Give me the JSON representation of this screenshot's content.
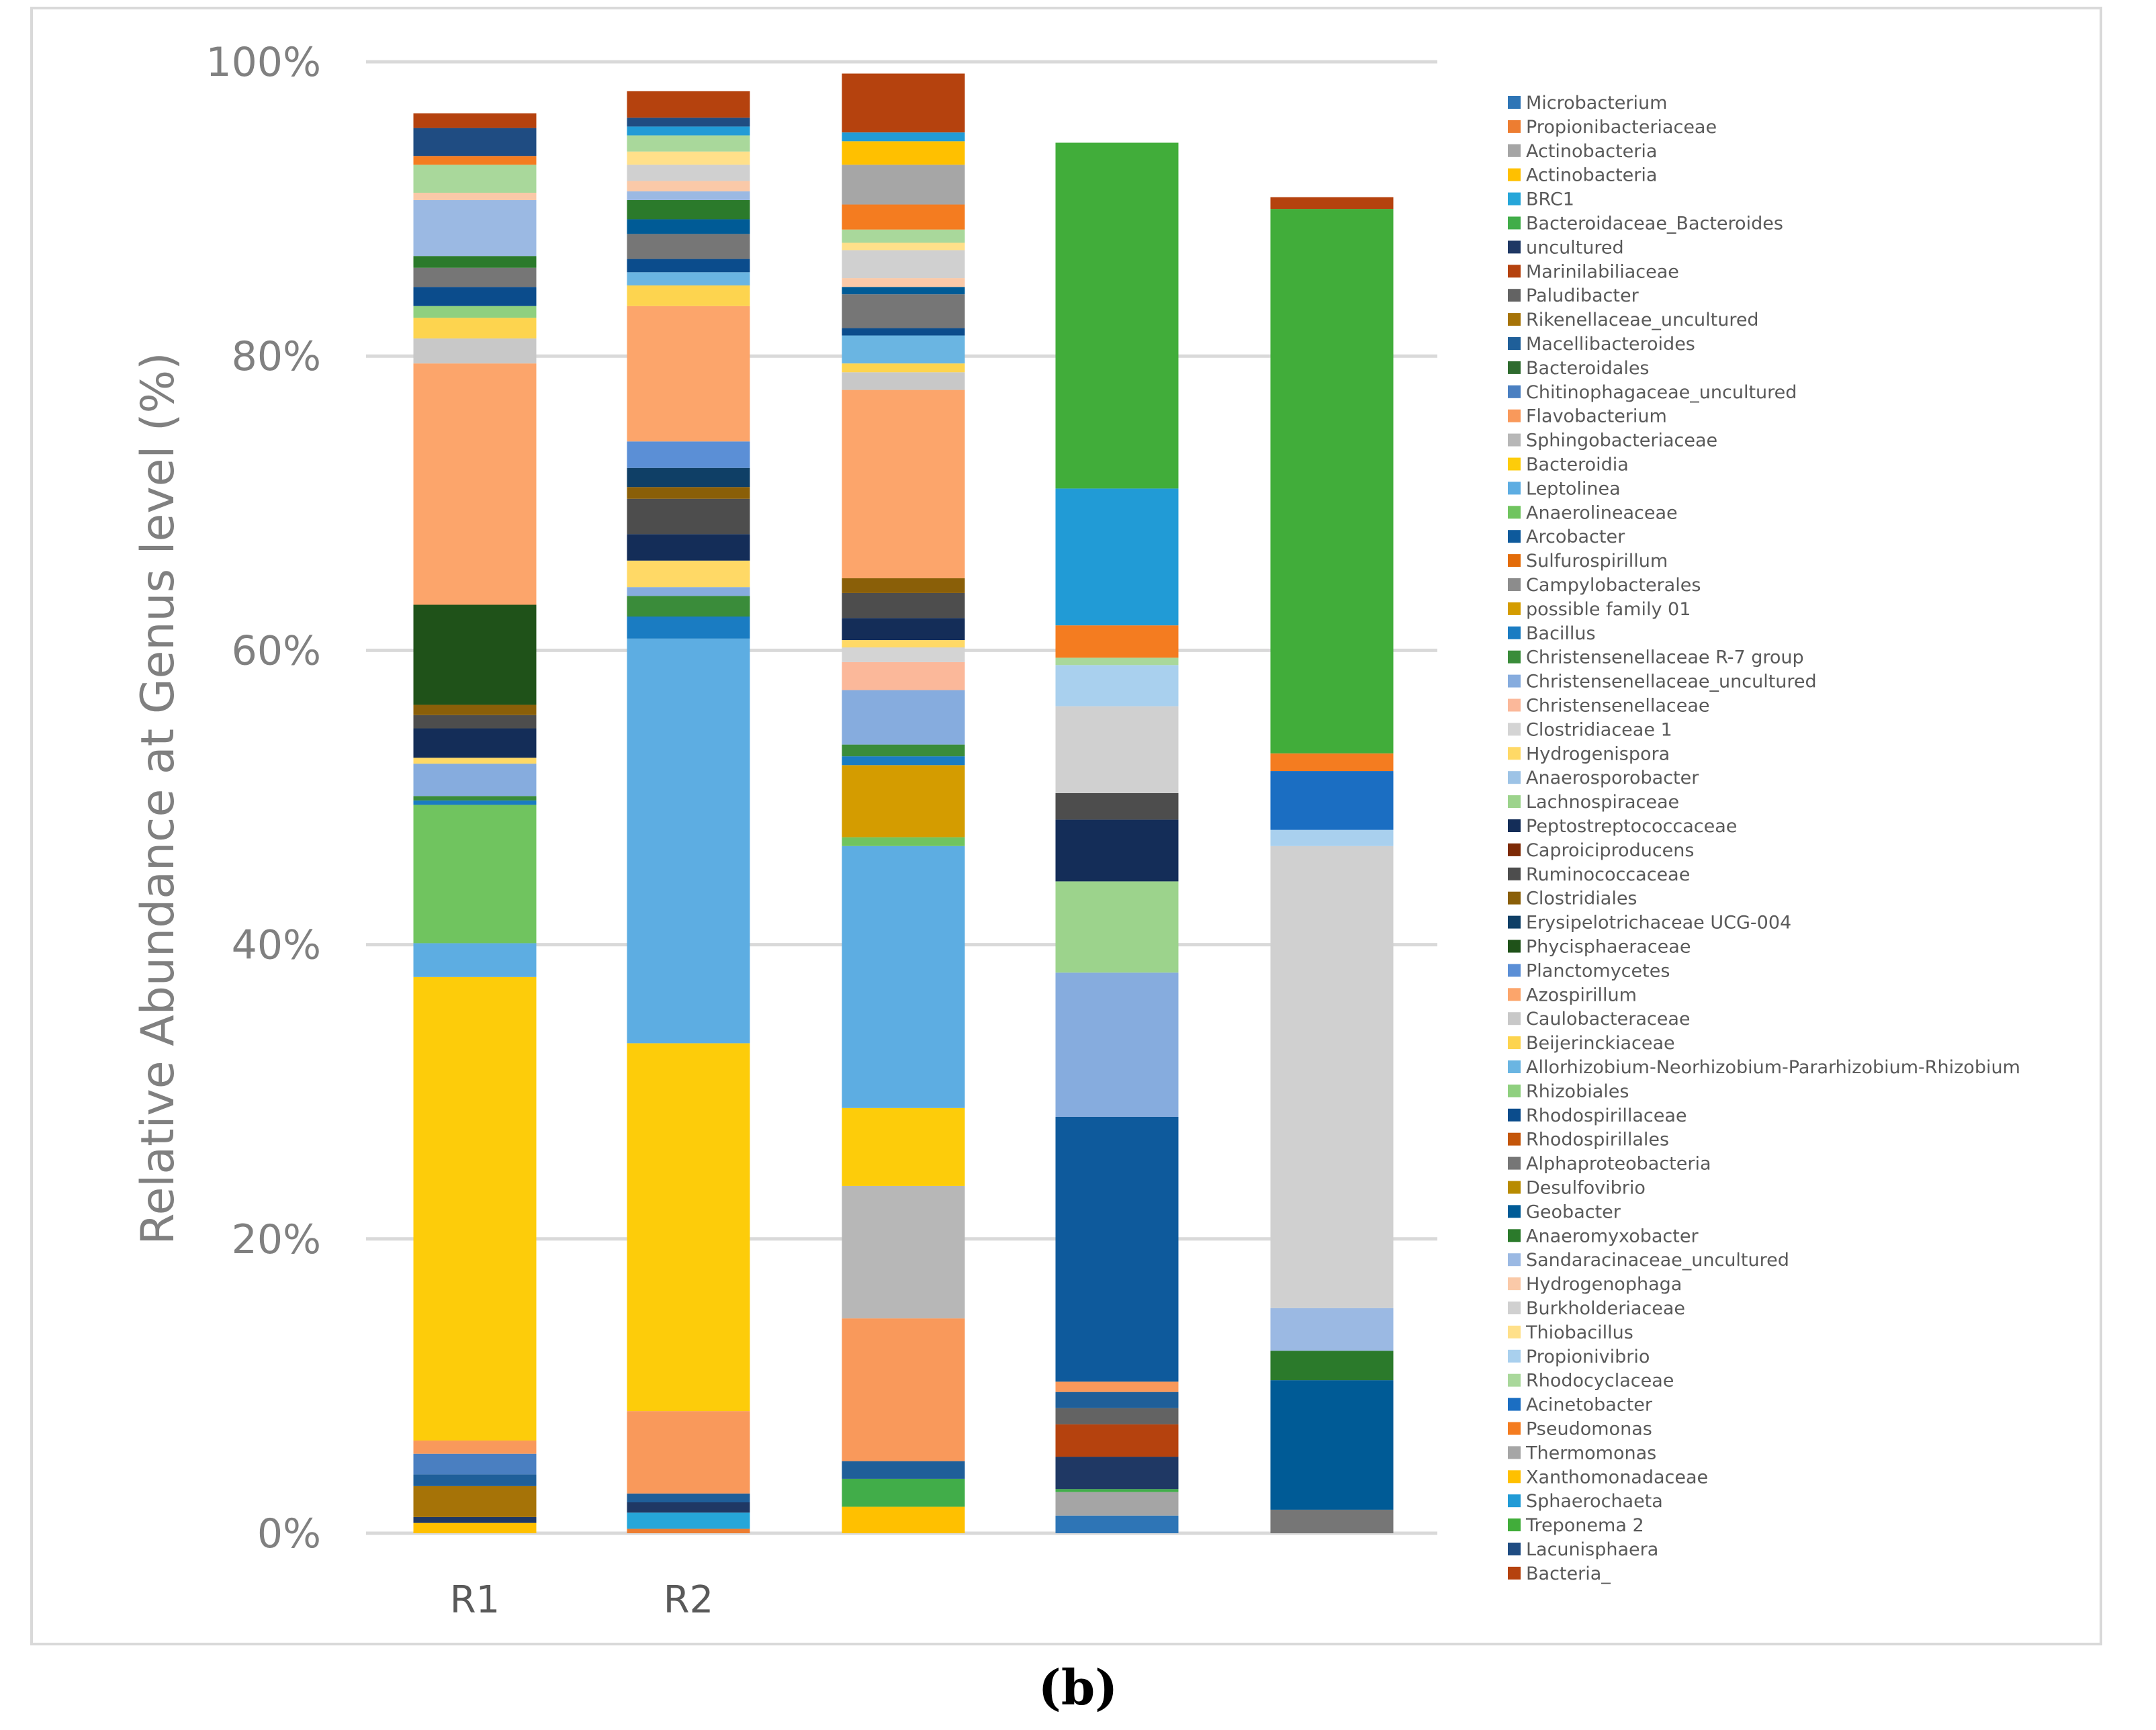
{
  "caption": "(b)",
  "chart_data": {
    "type": "stacked-bar",
    "ylabel": "Relative Abundance at Genus level (%)",
    "ylim": [
      0,
      100
    ],
    "yticks": [
      "0%",
      "20%",
      "40%",
      "60%",
      "80%",
      "100%"
    ],
    "grid": true,
    "legend_position": "right",
    "categories": [
      "R1",
      "R2",
      "",
      "",
      ""
    ],
    "series": [
      {
        "name": "Microbacterium",
        "color": "#2e75b6",
        "values": [
          0,
          0,
          0,
          1.2,
          0
        ]
      },
      {
        "name": "Propionibacteriaceae",
        "color": "#ed7d31",
        "values": [
          0,
          0.3,
          0,
          0,
          0
        ]
      },
      {
        "name": "Actinobacteria",
        "color": "#a5a5a5",
        "values": [
          0,
          0,
          0,
          1.6,
          0
        ]
      },
      {
        "name": "Actinobacteria",
        "color": "#ffc000",
        "values": [
          0.7,
          0,
          1.8,
          0,
          0
        ]
      },
      {
        "name": "BRC1",
        "color": "#26a6d9",
        "values": [
          0,
          1.1,
          0,
          0,
          0
        ]
      },
      {
        "name": "Bacteroidaceae_Bacteroides",
        "color": "#41ad49",
        "values": [
          0,
          0,
          1.9,
          0.2,
          0
        ]
      },
      {
        "name": "uncultured",
        "color": "#1f3864",
        "values": [
          0.4,
          0.7,
          0,
          2.2,
          0
        ]
      },
      {
        "name": "Marinilabiliaceae",
        "color": "#b5420e",
        "values": [
          0,
          0,
          0,
          2.2,
          0
        ]
      },
      {
        "name": "Paludibacter",
        "color": "#636363",
        "values": [
          0,
          0,
          0,
          1.1,
          0
        ]
      },
      {
        "name": "Rikenellaceae_uncultured",
        "color": "#a67307",
        "values": [
          2.1,
          0,
          0,
          0,
          0
        ]
      },
      {
        "name": "Macellibacteroides",
        "color": "#1f5f99",
        "values": [
          0.8,
          0.6,
          1.2,
          1.1,
          0
        ]
      },
      {
        "name": "Bacteroidales",
        "color": "#2e6b2e",
        "values": [
          0,
          0,
          0,
          0,
          0
        ]
      },
      {
        "name": "Chitinophagaceae_uncultured",
        "color": "#4a7fc1",
        "values": [
          1.4,
          0,
          0,
          0,
          0
        ]
      },
      {
        "name": "Flavobacterium",
        "color": "#f9995b",
        "values": [
          0.9,
          5.6,
          9.7,
          0.7,
          0
        ]
      },
      {
        "name": "Sphingobacteriaceae",
        "color": "#b7b7b7",
        "values": [
          0,
          0,
          9.0,
          0,
          0
        ]
      },
      {
        "name": "Bacteroidia",
        "color": "#fdcc0a",
        "values": [
          31.5,
          25.0,
          5.3,
          0,
          0
        ]
      },
      {
        "name": "Leptolinea",
        "color": "#5dade2",
        "values": [
          2.3,
          27.5,
          17.8,
          0,
          0
        ]
      },
      {
        "name": "Anaerolineaceae",
        "color": "#70c45f",
        "values": [
          9.4,
          0,
          0.6,
          0,
          0
        ]
      },
      {
        "name": "Arcobacter",
        "color": "#0e5a9c",
        "values": [
          0,
          0,
          0,
          18.0,
          0
        ]
      },
      {
        "name": "Sulfurospirillum",
        "color": "#e36c09",
        "values": [
          0,
          0,
          0,
          0,
          0
        ]
      },
      {
        "name": "Campylobacterales",
        "color": "#8c8c8c",
        "values": [
          0,
          0,
          0,
          0,
          0
        ]
      },
      {
        "name": "possible family 01",
        "color": "#d49c00",
        "values": [
          0,
          0,
          4.9,
          0,
          0
        ]
      },
      {
        "name": "Bacillus",
        "color": "#1a7cc2",
        "values": [
          0.3,
          1.5,
          0.6,
          0,
          0
        ]
      },
      {
        "name": "Christensenellaceae R-7 group",
        "color": "#3a8c3a",
        "values": [
          0.3,
          1.4,
          0.8,
          0,
          0
        ]
      },
      {
        "name": "Christensenellaceae_uncultured",
        "color": "#86acde",
        "values": [
          2.2,
          0.6,
          3.7,
          9.8,
          0
        ]
      },
      {
        "name": "Christensenellaceae",
        "color": "#fbb89a",
        "values": [
          0,
          0,
          1.9,
          0,
          0
        ]
      },
      {
        "name": "Clostridiaceae 1",
        "color": "#d4d4d4",
        "values": [
          0,
          0,
          1.0,
          0,
          0
        ]
      },
      {
        "name": "Hydrogenispora",
        "color": "#ffd966",
        "values": [
          0.4,
          1.8,
          0.5,
          0,
          0
        ]
      },
      {
        "name": "Anaerosporobacter",
        "color": "#9dc3e6",
        "values": [
          0,
          0,
          0,
          0,
          0
        ]
      },
      {
        "name": "Lachnospiraceae",
        "color": "#9cd38c",
        "values": [
          0,
          0,
          0,
          6.2,
          0
        ]
      },
      {
        "name": "Peptostreptococcaceae",
        "color": "#142d58",
        "values": [
          2.0,
          1.8,
          1.5,
          4.2,
          0
        ]
      },
      {
        "name": "Caproiciproducens",
        "color": "#7d2a06",
        "values": [
          0,
          0,
          0,
          0,
          0
        ]
      },
      {
        "name": "Ruminococcaceae",
        "color": "#4d4d4d",
        "values": [
          0.9,
          2.4,
          1.7,
          1.8,
          0
        ]
      },
      {
        "name": "Clostridiales",
        "color": "#8a5f08",
        "values": [
          0.7,
          0.8,
          1.0,
          0,
          0
        ]
      },
      {
        "name": "Erysipelotrichaceae UCG-004",
        "color": "#0f3f66",
        "values": [
          0,
          1.3,
          0,
          0,
          0
        ]
      },
      {
        "name": "Phycisphaeraceae",
        "color": "#1f5219",
        "values": [
          6.8,
          0,
          0,
          0,
          0
        ]
      },
      {
        "name": "Planctomycetes",
        "color": "#5b8fd6",
        "values": [
          0,
          1.8,
          0,
          0,
          0
        ]
      },
      {
        "name": "Azospirillum",
        "color": "#fca56b",
        "values": [
          16.4,
          9.2,
          12.8,
          0,
          0
        ]
      },
      {
        "name": "Caulobacteraceae",
        "color": "#c8c8c8",
        "values": [
          1.7,
          0,
          1.2,
          0,
          0
        ]
      },
      {
        "name": "Beijerinckiaceae",
        "color": "#fdd44f",
        "values": [
          1.4,
          1.4,
          0.6,
          0,
          0
        ]
      },
      {
        "name": "Allorhizobium-Neorhizobium-Pararhizobium-Rhizobium",
        "color": "#6ab5e2",
        "values": [
          0,
          0.9,
          1.9,
          0,
          0
        ]
      },
      {
        "name": "Rhizobiales",
        "color": "#8fd07f",
        "values": [
          0.8,
          0,
          0,
          0,
          0
        ]
      },
      {
        "name": "Rhodospirillaceae",
        "color": "#0b4c8c",
        "values": [
          1.3,
          0.9,
          0.5,
          0,
          0
        ]
      },
      {
        "name": "Rhodospirillales",
        "color": "#c4560a",
        "values": [
          0,
          0,
          0,
          0,
          0
        ]
      },
      {
        "name": "Alphaproteobacteria",
        "color": "#767676",
        "values": [
          1.3,
          1.7,
          2.3,
          0,
          1.6
        ]
      },
      {
        "name": "Desulfovibrio",
        "color": "#b88b00",
        "values": [
          0,
          0,
          0,
          0,
          0
        ]
      },
      {
        "name": "Geobacter",
        "color": "#005b96",
        "values": [
          0,
          1.0,
          0.5,
          0,
          8.8
        ]
      },
      {
        "name": "Anaeromyxobacter",
        "color": "#2b7a2b",
        "values": [
          0.8,
          1.3,
          0,
          0,
          2.0
        ]
      },
      {
        "name": "Sandaracinaceae_uncultured",
        "color": "#9bb9e3",
        "values": [
          3.8,
          0.6,
          0,
          0,
          2.9
        ]
      },
      {
        "name": "Hydrogenophaga",
        "color": "#fac9a8",
        "values": [
          0.5,
          0.7,
          0.6,
          0,
          0
        ]
      },
      {
        "name": "Burkholderiaceae",
        "color": "#d0d0d0",
        "values": [
          0,
          1.1,
          1.9,
          5.9,
          31.4
        ]
      },
      {
        "name": "Thiobacillus",
        "color": "#ffe08a",
        "values": [
          0,
          0.9,
          0.5,
          0,
          0
        ]
      },
      {
        "name": "Propionivibrio",
        "color": "#a9d0ee",
        "values": [
          0,
          0,
          0,
          2.8,
          1.1
        ]
      },
      {
        "name": "Rhodocyclaceae",
        "color": "#a9d89b",
        "values": [
          1.9,
          1.1,
          0.9,
          0.5,
          0
        ]
      },
      {
        "name": "Acinetobacter",
        "color": "#1b6ec2",
        "values": [
          0,
          0,
          0,
          0,
          4.0
        ]
      },
      {
        "name": "Pseudomonas",
        "color": "#f47c20",
        "values": [
          0.6,
          0,
          1.7,
          2.2,
          1.2
        ]
      },
      {
        "name": "Thermomonas",
        "color": "#a6a6a6",
        "values": [
          0,
          0,
          2.7,
          0,
          0
        ]
      },
      {
        "name": "Xanthomonadaceae",
        "color": "#ffc000",
        "values": [
          0,
          0,
          1.6,
          0,
          0
        ]
      },
      {
        "name": "Sphaerochaeta",
        "color": "#219bd6",
        "values": [
          0,
          0.6,
          0.6,
          9.3,
          0
        ]
      },
      {
        "name": "Treponema 2",
        "color": "#41ad3a",
        "values": [
          0,
          0,
          0,
          23.5,
          37.0
        ]
      },
      {
        "name": "Lacunisphaera",
        "color": "#1f4c82",
        "values": [
          1.9,
          0.6,
          0,
          0,
          0
        ]
      },
      {
        "name": "Bacteria_",
        "color": "#b5420e",
        "values": [
          1.0,
          1.8,
          4.0,
          0,
          0.8
        ]
      }
    ]
  }
}
